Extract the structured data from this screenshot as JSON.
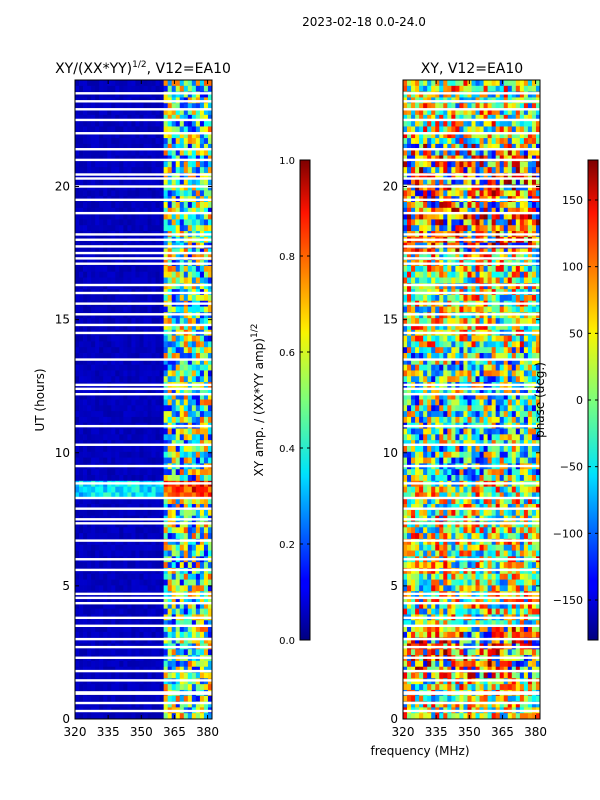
{
  "figure_title": "2023-02-18 0.0-24.0",
  "colors": {
    "masked": "#ffffff",
    "frame": "#000000"
  },
  "chart_data": [
    {
      "type": "heatmap",
      "title_base": "XY/(XX*YY)",
      "title_exp": "1/2",
      "title_suffix": ", V12=EA10",
      "xlabel": "",
      "ylabel": "UT (hours)",
      "xlim": [
        320,
        382
      ],
      "ylim": [
        0,
        24
      ],
      "xticks": [
        320,
        335,
        350,
        365,
        380
      ],
      "yticks": [
        0,
        5,
        10,
        15,
        20
      ],
      "colormap": "jet",
      "colorbar": {
        "label_base": "XY amp. / (XX*YY amp)",
        "label_exp": "1/2",
        "range": [
          0.0,
          1.0
        ],
        "ticks": [
          "0.0",
          "0.2",
          "0.4",
          "0.6",
          "0.8",
          "1.0"
        ],
        "tick_values": [
          0.0,
          0.2,
          0.4,
          0.6,
          0.8,
          1.0
        ]
      },
      "pattern": "low values (~0.05) from 320-361 MHz; mixed 0.1-0.9 values from 361-382 MHz; horizontal band of high values near 8.6 UT",
      "masked_rows_ut": [
        0.3,
        0.6,
        0.95,
        1.0,
        1.45,
        1.8,
        2.3,
        2.7,
        3.0,
        3.5,
        3.8,
        4.35,
        4.55,
        4.7,
        5.6,
        6.0,
        6.7,
        7.35,
        7.5,
        7.9,
        8.3,
        8.85,
        9.5,
        10.3,
        11.0,
        12.2,
        12.4,
        12.55,
        13.5,
        14.5,
        14.8,
        15.2,
        15.6,
        16.0,
        16.3,
        17.1,
        17.3,
        17.5,
        17.75,
        18.0,
        18.2,
        19.0,
        19.5,
        20.0,
        20.3,
        20.45,
        21.0,
        21.4,
        22.0,
        22.5,
        22.9,
        23.2,
        23.5
      ]
    },
    {
      "type": "heatmap",
      "title": "XY, V12=EA10",
      "xlabel": "frequency (MHz)",
      "ylabel": "",
      "xlim": [
        320,
        382
      ],
      "ylim": [
        0,
        24
      ],
      "xticks": [
        320,
        335,
        350,
        365,
        380
      ],
      "yticks": [
        0,
        5,
        10,
        15,
        20
      ],
      "colormap": "jet",
      "colorbar": {
        "label": "phase (deg.)",
        "range": [
          -180,
          180
        ],
        "ticks": [
          "−150",
          "−100",
          "−50",
          "0",
          "50",
          "100",
          "150"
        ],
        "tick_values": [
          -150,
          -100,
          -50,
          0,
          50,
          100,
          150
        ]
      },
      "pattern": "noisy phase values spanning -180 to 180 deg; predominantly positive (red) near 20 UT and 2-3 UT, near 0 (green/cyan) between 9 and 14 UT",
      "masked_rows_ut": [
        0.3,
        0.6,
        0.95,
        1.0,
        1.45,
        1.8,
        2.3,
        2.7,
        3.0,
        3.5,
        3.8,
        4.35,
        4.55,
        4.7,
        5.6,
        6.0,
        6.7,
        7.35,
        7.5,
        7.9,
        8.3,
        8.85,
        9.5,
        10.3,
        11.0,
        12.2,
        12.4,
        12.55,
        13.5,
        14.5,
        14.8,
        15.2,
        15.6,
        16.0,
        16.3,
        17.1,
        17.3,
        17.5,
        17.75,
        18.0,
        18.2,
        19.0,
        19.5,
        20.0,
        20.3,
        20.45,
        21.0,
        21.4,
        22.0,
        22.5,
        22.9,
        23.2,
        23.5
      ]
    }
  ]
}
